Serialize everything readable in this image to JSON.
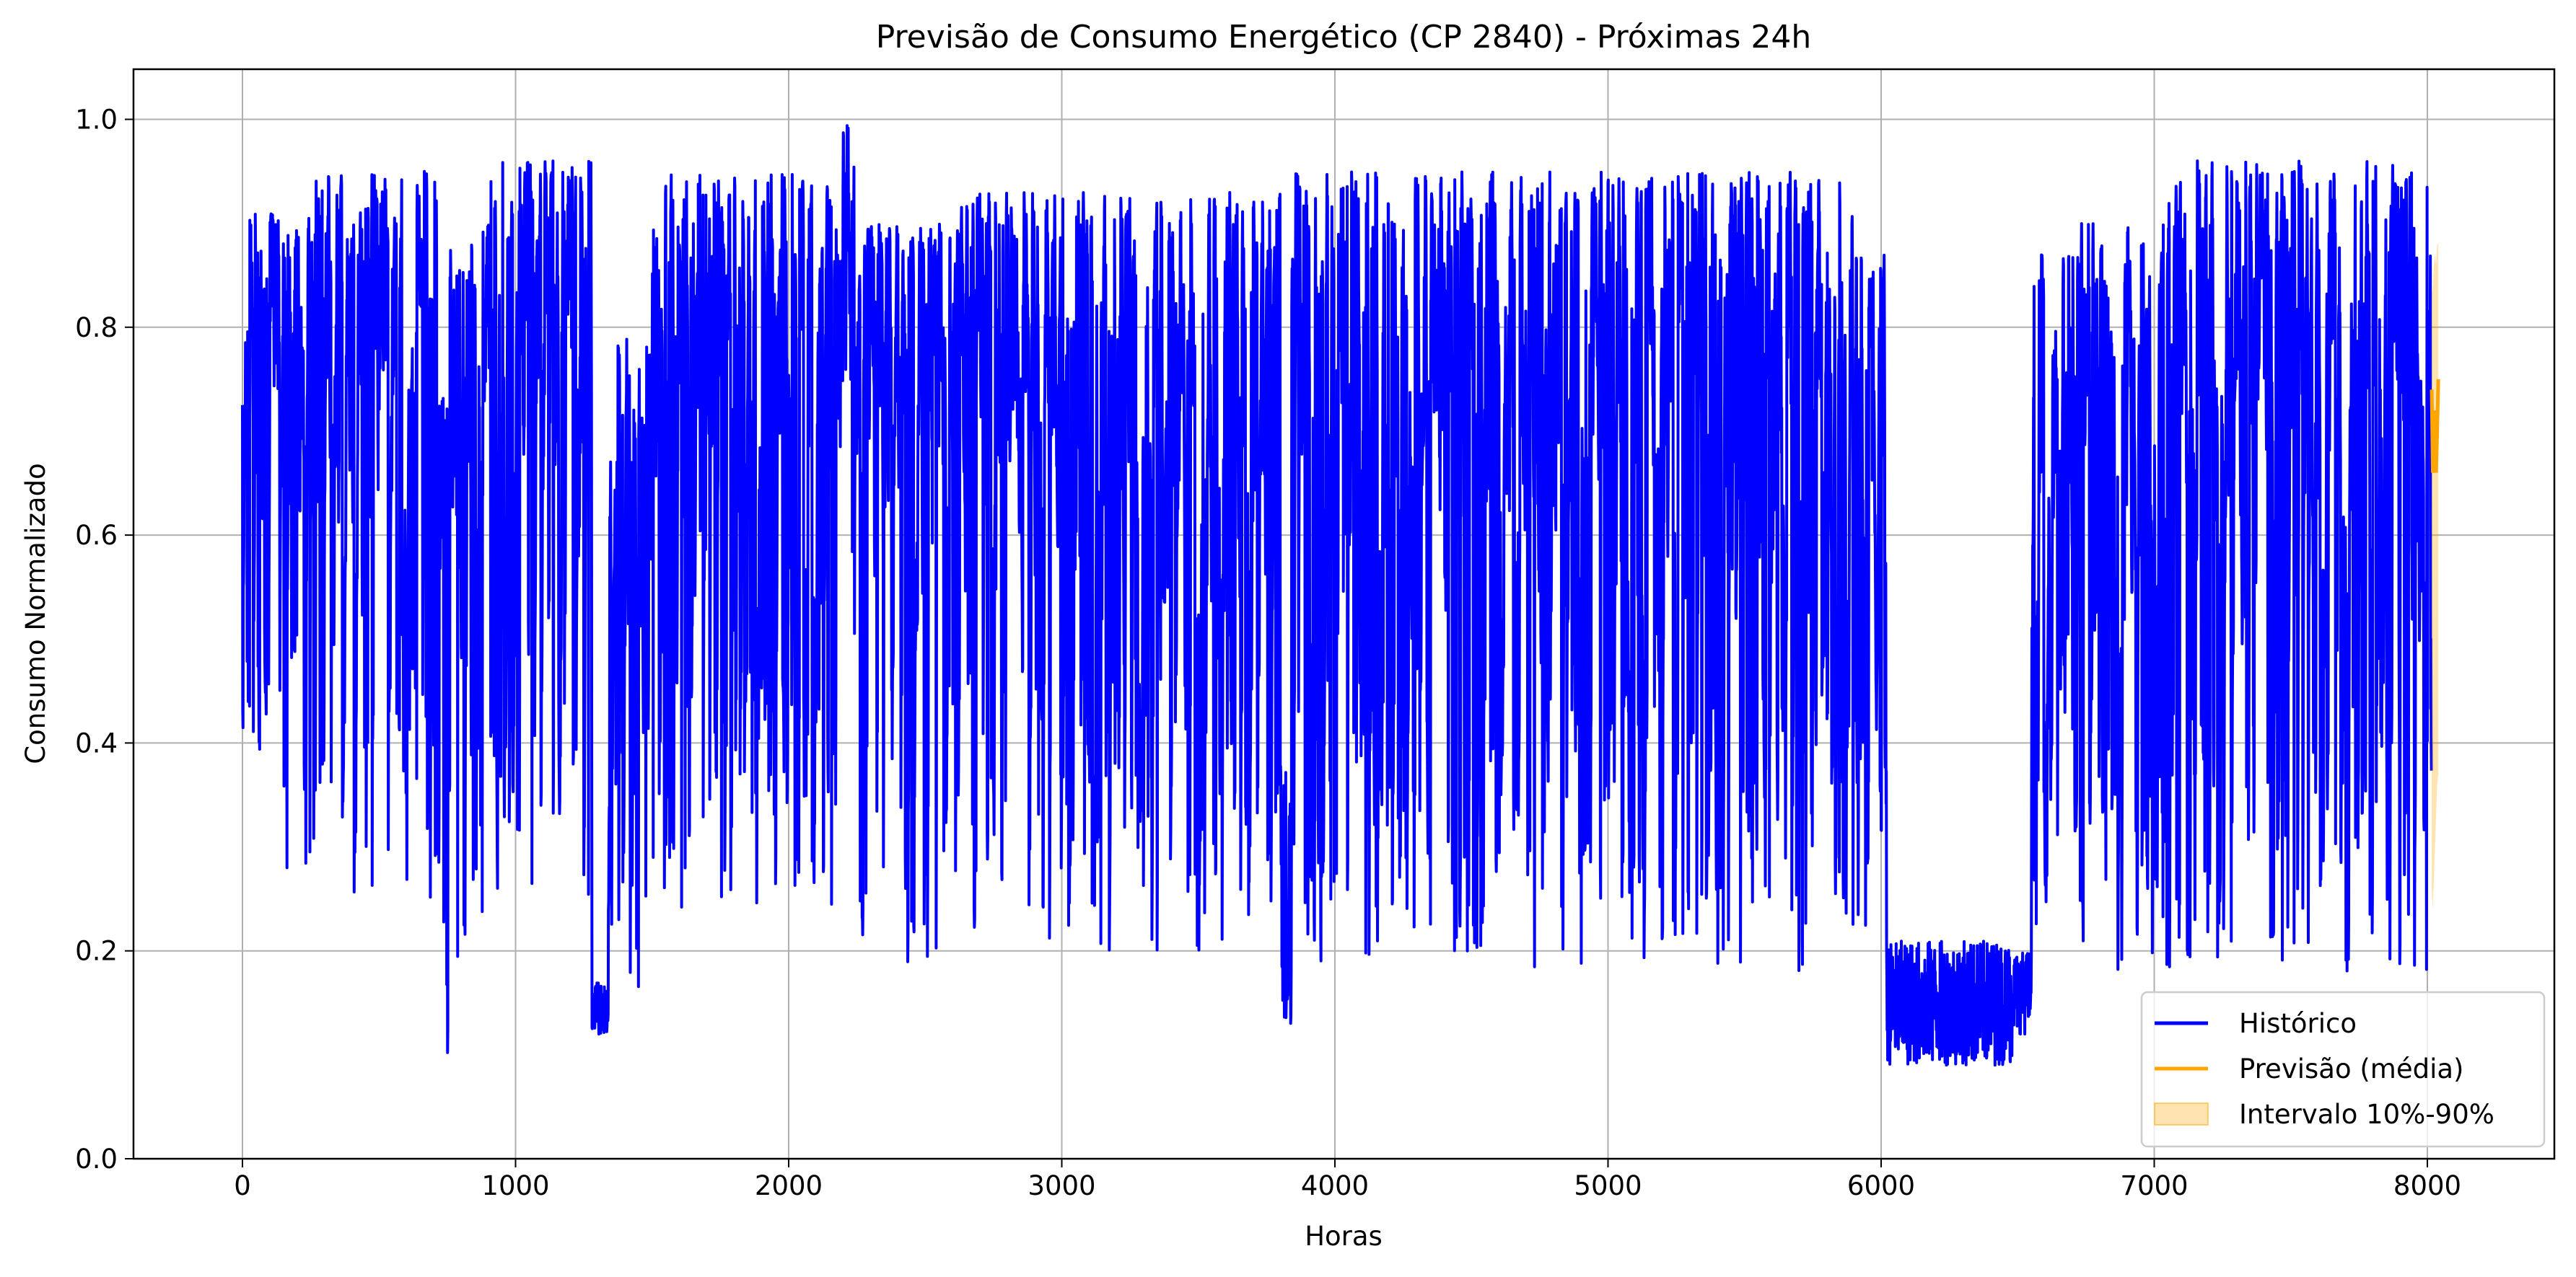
{
  "chart_data": {
    "type": "line",
    "title": "Previsão de Consumo Energético (CP 2840) - Próximas 24h",
    "xlabel": "Horas",
    "ylabel": "Consumo Normalizado",
    "xlim": [
      -400,
      8450
    ],
    "ylim": [
      0.0,
      1.05
    ],
    "xticks": [
      0,
      1000,
      2000,
      3000,
      4000,
      5000,
      6000,
      7000,
      8000
    ],
    "xtick_labels": [
      "0",
      "1000",
      "2000",
      "3000",
      "4000",
      "5000",
      "6000",
      "7000",
      "8000"
    ],
    "yticks": [
      0.0,
      0.2,
      0.4,
      0.6,
      0.8,
      1.0
    ],
    "ytick_labels": [
      "0.0",
      "0.2",
      "0.4",
      "0.6",
      "0.8",
      "1.0"
    ],
    "grid": true,
    "legend_position": "lower-right",
    "series": [
      {
        "name": "Histórico",
        "color": "#0000ff",
        "kind": "line",
        "x_start": 0,
        "x_step": 1,
        "count": 8016,
        "segments": [
          {
            "x": [
              0,
              270
            ],
            "low": 0.28,
            "high": 0.91
          },
          {
            "x": [
              270,
              720
            ],
            "low": 0.25,
            "high": 0.95
          },
          {
            "x": [
              720,
              760
            ],
            "low": 0.05,
            "high": 0.75
          },
          {
            "x": [
              760,
              880
            ],
            "low": 0.19,
            "high": 0.88
          },
          {
            "x": [
              880,
              1280
            ],
            "low": 0.24,
            "high": 0.96
          },
          {
            "x": [
              1280,
              1340
            ],
            "low": 0.12,
            "high": 0.17
          },
          {
            "x": [
              1340,
              1420
            ],
            "low": 0.2,
            "high": 0.8
          },
          {
            "x": [
              1420,
              1500
            ],
            "low": 0.12,
            "high": 0.8
          },
          {
            "x": [
              1500,
              2200
            ],
            "low": 0.24,
            "high": 0.95
          },
          {
            "x": [
              2200,
              2260
            ],
            "low": 0.4,
            "high": 1.0
          },
          {
            "x": [
              2260,
              2600
            ],
            "low": 0.18,
            "high": 0.9
          },
          {
            "x": [
              2600,
              3800
            ],
            "low": 0.2,
            "high": 0.93
          },
          {
            "x": [
              3800,
              3840
            ],
            "low": 0.13,
            "high": 0.38
          },
          {
            "x": [
              3840,
              5900
            ],
            "low": 0.18,
            "high": 0.95
          },
          {
            "x": [
              5900,
              6020
            ],
            "low": 0.2,
            "high": 0.87
          },
          {
            "x": [
              6020,
              6480
            ],
            "low": 0.09,
            "high": 0.21
          },
          {
            "x": [
              6480,
              6550
            ],
            "low": 0.12,
            "high": 0.2
          },
          {
            "x": [
              6550,
              7050
            ],
            "low": 0.18,
            "high": 0.9
          },
          {
            "x": [
              7050,
              8016
            ],
            "low": 0.18,
            "high": 0.96
          }
        ]
      },
      {
        "name": "Previsão (média)",
        "color": "#ffa500",
        "kind": "line",
        "x": [
          8016,
          8020,
          8024,
          8028,
          8032,
          8036,
          8040
        ],
        "y": [
          0.74,
          0.66,
          0.69,
          0.72,
          0.66,
          0.7,
          0.75
        ]
      },
      {
        "name": "Intervalo 10%-90%",
        "color": "#ffa500",
        "kind": "band",
        "opacity": 0.3,
        "x": [
          8016,
          8020,
          8024,
          8028,
          8032,
          8036,
          8040
        ],
        "lower": [
          0.26,
          0.24,
          0.27,
          0.3,
          0.33,
          0.36,
          0.37
        ],
        "upper": [
          0.83,
          0.84,
          0.86,
          0.87,
          0.86,
          0.88,
          0.88
        ]
      }
    ]
  }
}
